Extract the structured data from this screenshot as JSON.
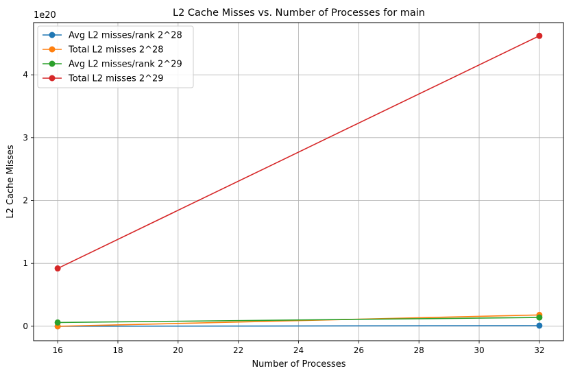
{
  "chart_data": {
    "type": "line",
    "title": "L2 Cache Misses vs. Number of Processes for main",
    "xlabel": "Number of Processes",
    "ylabel": "L2 Cache Misses",
    "y_offset_label": "1e20",
    "x": [
      16,
      32
    ],
    "xlim": [
      15.2,
      32.8
    ],
    "ylim": [
      -0.23,
      4.83
    ],
    "y_unit_scale": "1e20",
    "xticks": [
      16,
      18,
      20,
      22,
      24,
      26,
      28,
      30,
      32
    ],
    "yticks": [
      0,
      1,
      2,
      3,
      4
    ],
    "grid": true,
    "legend_position": "top-left",
    "series": [
      {
        "name": "Avg L2 misses/rank 2^28",
        "color": "#1f77b4",
        "values": [
          0.0,
          0.01
        ]
      },
      {
        "name": "Total L2 misses 2^28",
        "color": "#ff7f0e",
        "values": [
          0.0,
          0.18
        ]
      },
      {
        "name": "Avg L2 misses/rank 2^29",
        "color": "#2ca02c",
        "values": [
          0.06,
          0.14
        ]
      },
      {
        "name": "Total L2 misses 2^29",
        "color": "#d62728",
        "values": [
          0.92,
          4.62
        ]
      }
    ]
  }
}
